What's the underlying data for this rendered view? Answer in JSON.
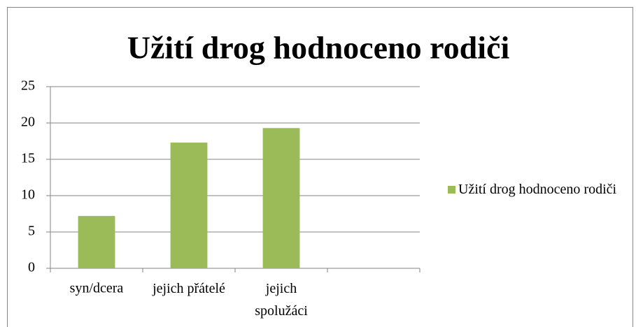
{
  "chart_data": {
    "type": "bar",
    "title": "Užití drog hodnoceno rodiči",
    "categories": [
      "syn/dcera",
      "jejich přátelé",
      "jejich spolužáci",
      null
    ],
    "series": [
      {
        "name": "Užití drog hodnoceno rodiči",
        "color": "#9bbb59",
        "values": [
          7.2,
          17.3,
          19.3,
          null
        ]
      }
    ],
    "ylim": [
      0,
      25
    ],
    "yticks": [
      0,
      5,
      10,
      15,
      20,
      25
    ],
    "grid": true,
    "legend": "right"
  }
}
